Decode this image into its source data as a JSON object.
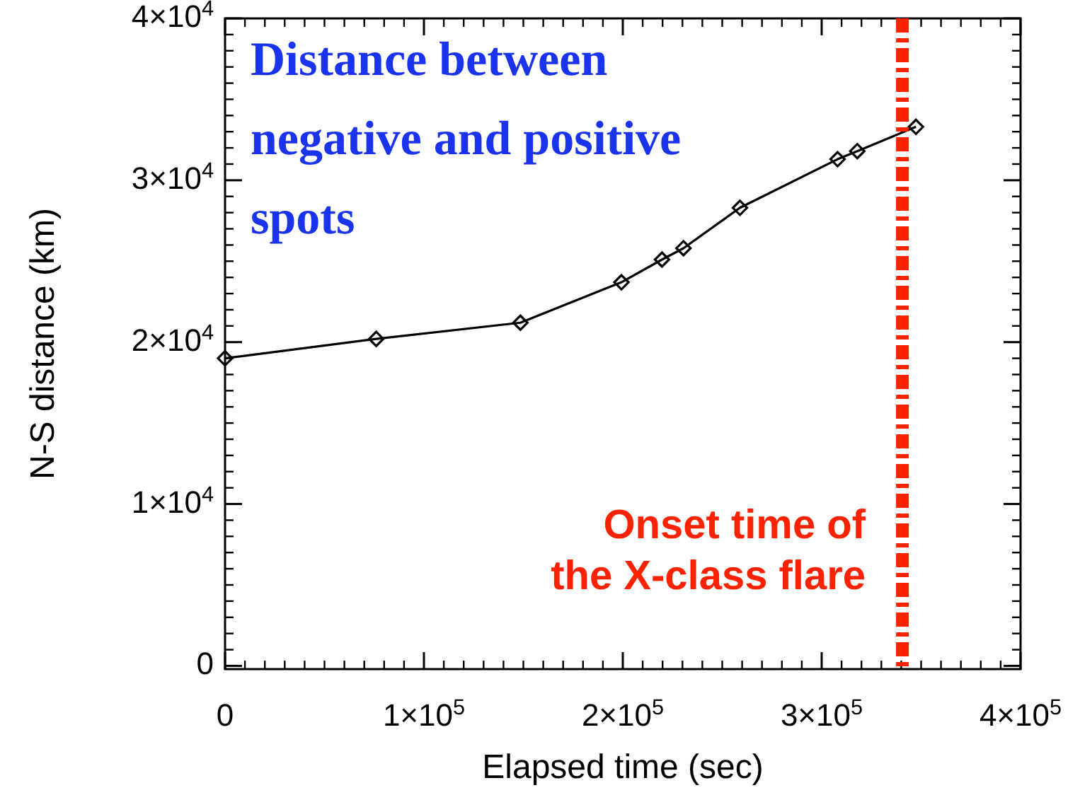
{
  "chart_data": {
    "type": "line",
    "xlabel": "Elapsed time (sec)",
    "ylabel": "N-S distance (km)",
    "x": [
      0,
      76000,
      148500,
      199300,
      219700,
      230500,
      258900,
      308000,
      317900,
      347400
    ],
    "series": [
      {
        "color": "#000000",
        "values": [
          19000,
          20200,
          21200,
          23700,
          25100,
          25800,
          28300,
          31300,
          31800,
          33300
        ]
      }
    ],
    "xlim": [
      0,
      400000
    ],
    "ylim": [
      -200,
      40000
    ],
    "xticks": [
      0,
      {
        "value": 100000,
        "label": "1×10$^{5}$"
      },
      {
        "value": 200000,
        "label": "2×10$^{5}$"
      },
      {
        "value": 300000,
        "label": "3×10$^{5}$"
      },
      {
        "value": 400000,
        "label": "4×10$^{5}$"
      }
    ],
    "yticks": [
      0,
      {
        "value": 10000,
        "label": "1×10$^{4}$"
      },
      {
        "value": 20000,
        "label": "2×10$^{4}$"
      },
      {
        "value": 30000,
        "label": "3×10$^{4}$"
      },
      {
        "value": 40000,
        "label": "4×10$^{4}$"
      }
    ],
    "marker": "diamond",
    "line_style": "solid",
    "grid": false,
    "ref_lines": [
      {
        "axis": "x",
        "value": 340600,
        "label": "Onset time of\nthe X-class flare",
        "color": "#ff2200",
        "line_style": "dashed"
      }
    ],
    "annotations": [
      "Distance between\nnegative and positive\nspots"
    ]
  }
}
